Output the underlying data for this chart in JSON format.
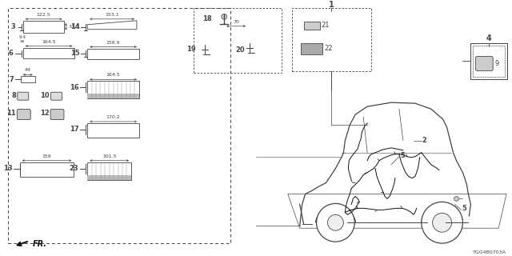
{
  "bg_color": "#ffffff",
  "diagram_code": "TGG4B0703A",
  "line_color": "#444444",
  "light_gray": "#aaaaaa",
  "mid_gray": "#888888"
}
